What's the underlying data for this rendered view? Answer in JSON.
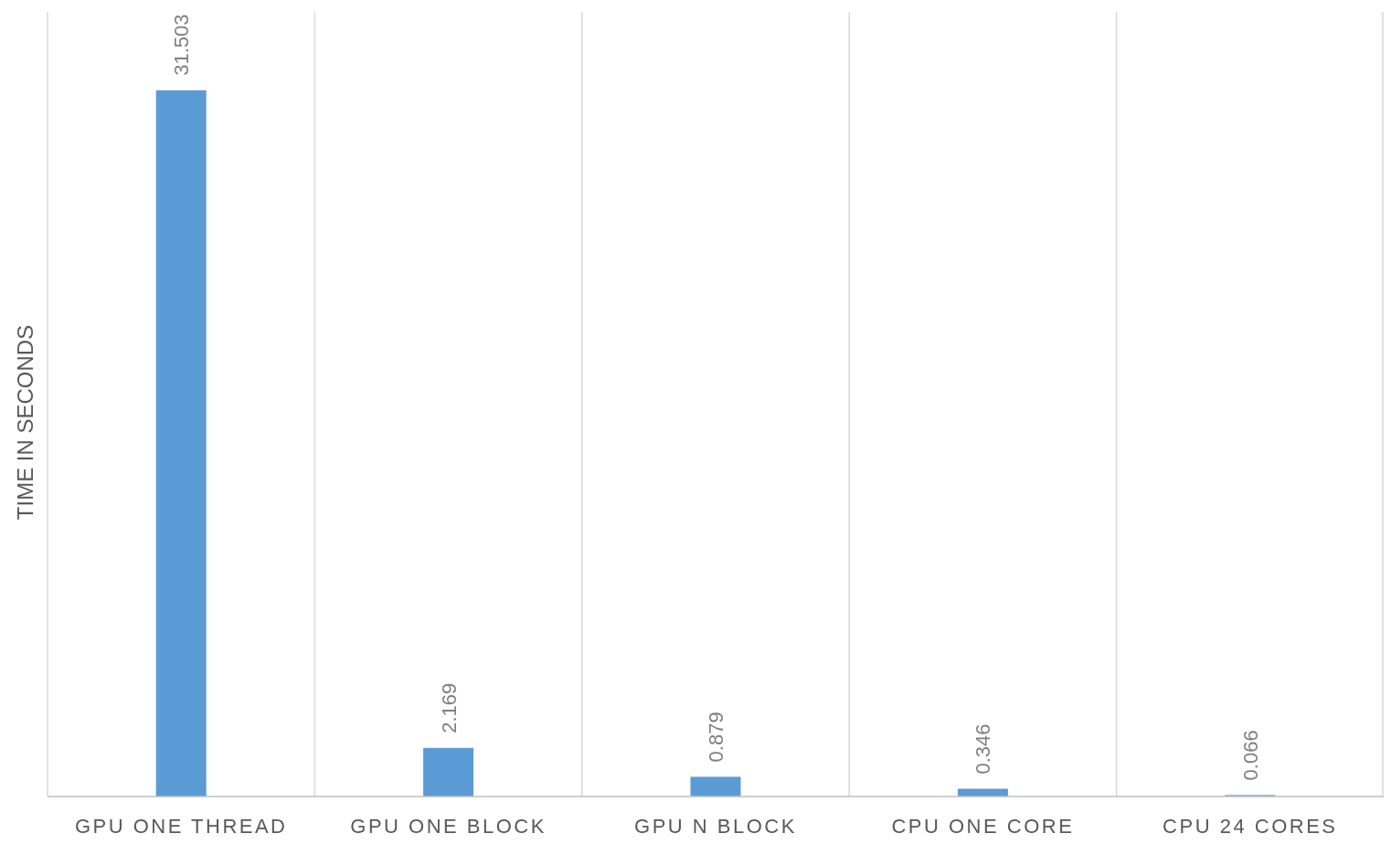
{
  "chart_data": {
    "type": "bar",
    "ylabel": "TIME IN SECONDS",
    "categories": [
      "GPU ONE THREAD",
      "GPU ONE BLOCK",
      "GPU N BLOCK",
      "CPU ONE CORE",
      "CPU 24 CORES"
    ],
    "values": [
      31.503,
      2.169,
      0.879,
      0.346,
      0.066
    ],
    "color": "#5b9bd5",
    "ylim": [
      0,
      35
    ],
    "data_labels": true,
    "grid": "x",
    "tick_labels": "x"
  }
}
